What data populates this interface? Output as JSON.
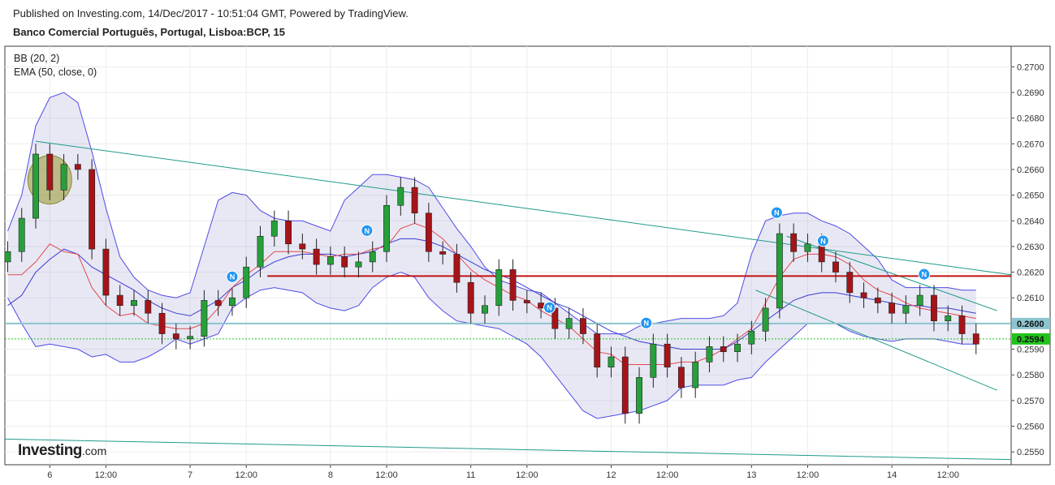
{
  "header": {
    "published": "Published on Investing.com, 14/Dec/2017 - 10:51:04 GMT, Powered by TradingView.",
    "instrument": "Banco Comercial Português, Portugal, Lisboa:BCP, 15"
  },
  "legend": {
    "bb": "BB (20, 2)",
    "ema": "EMA (50, close, 0)"
  },
  "logo": {
    "main": "Investing",
    "suffix": ".com"
  },
  "chart_data": {
    "type": "candlestick",
    "ylim": [
      0.2545,
      0.2708
    ],
    "yticks": [
      "0.2550",
      "0.2560",
      "0.2570",
      "0.2580",
      "0.2590",
      "0.2600",
      "0.2610",
      "0.2620",
      "0.2630",
      "0.2640",
      "0.2650",
      "0.2660",
      "0.2670",
      "0.2680",
      "0.2690",
      "0.2700"
    ],
    "xticks": [
      {
        "label": "6",
        "t": 3
      },
      {
        "label": "12:00",
        "t": 7
      },
      {
        "label": "7",
        "t": 13
      },
      {
        "label": "12:00",
        "t": 17
      },
      {
        "label": "8",
        "t": 23
      },
      {
        "label": "12:00",
        "t": 27
      },
      {
        "label": "11",
        "t": 33
      },
      {
        "label": "12:00",
        "t": 37
      },
      {
        "label": "12",
        "t": 43
      },
      {
        "label": "12:00",
        "t": 47
      },
      {
        "label": "13",
        "t": 53
      },
      {
        "label": "12:00",
        "t": 57
      },
      {
        "label": "14",
        "t": 63
      },
      {
        "label": "12:00",
        "t": 67
      }
    ],
    "x_range": [
      -0.2,
      71.5
    ],
    "price_markers": [
      {
        "value": 0.26,
        "label": "0.2600",
        "color": "#8cc4cf"
      },
      {
        "value": 0.2594,
        "label": "0.2594",
        "color": "#22c41b"
      }
    ],
    "close": [
      0.2628,
      0.2641,
      0.2666,
      0.2652,
      0.2662,
      0.266,
      0.2629,
      0.2611,
      0.2607,
      0.2609,
      0.2604,
      0.2596,
      0.2594,
      0.2595,
      0.2609,
      0.2607,
      0.261,
      0.2622,
      0.2634,
      0.264,
      0.2631,
      0.2629,
      0.2623,
      0.2626,
      0.2622,
      0.2624,
      0.2628,
      0.2646,
      0.2653,
      0.2643,
      0.2628,
      0.2627,
      0.2616,
      0.2604,
      0.2607,
      0.2621,
      0.2609,
      0.2608,
      0.2606,
      0.2598,
      0.2602,
      0.2596,
      0.2583,
      0.2587,
      0.2565,
      0.2579,
      0.2592,
      0.2583,
      0.2575,
      0.2585,
      0.2591,
      0.2589,
      0.2592,
      0.2597,
      0.2606,
      0.2635,
      0.2628,
      0.2631,
      0.2624,
      0.262,
      0.2612,
      0.261,
      0.2608,
      0.2604,
      0.2607,
      0.2611,
      0.2601,
      0.2603,
      0.2596,
      0.2592
    ],
    "ema50": [
      0.2619,
      0.2619,
      0.2624,
      0.2631,
      0.2628,
      0.2627,
      0.2614,
      0.2607,
      0.2603,
      0.2604,
      0.26,
      0.2599,
      0.2598,
      0.2598,
      0.26,
      0.2606,
      0.2614,
      0.2619,
      0.2623,
      0.2628,
      0.2628,
      0.2628,
      0.2627,
      0.2626,
      0.2627,
      0.2627,
      0.2629,
      0.263,
      0.2637,
      0.2639,
      0.2637,
      0.2633,
      0.2627,
      0.2621,
      0.2617,
      0.2614,
      0.2611,
      0.2609,
      0.2605,
      0.2602,
      0.2599,
      0.2594,
      0.2589,
      0.2588,
      0.2584,
      0.2584,
      0.2584,
      0.2584,
      0.2585,
      0.2585,
      0.2587,
      0.259,
      0.2594,
      0.2598,
      0.2608,
      0.2618,
      0.2625,
      0.2627,
      0.2627,
      0.2626,
      0.2623,
      0.2617,
      0.2613,
      0.2611,
      0.2608,
      0.2606,
      0.2605,
      0.2604,
      0.2603,
      0.2602
    ],
    "bb_mid": [
      0.2607,
      0.2611,
      0.262,
      0.2625,
      0.2629,
      0.2627,
      0.2622,
      0.2619,
      0.2616,
      0.2613,
      0.2609,
      0.2606,
      0.2604,
      0.2603,
      0.2606,
      0.2609,
      0.2614,
      0.2617,
      0.2621,
      0.2624,
      0.2626,
      0.2627,
      0.2627,
      0.2627,
      0.2626,
      0.2627,
      0.2628,
      0.2631,
      0.2633,
      0.2633,
      0.2632,
      0.263,
      0.2627,
      0.2624,
      0.2621,
      0.2619,
      0.2617,
      0.2614,
      0.2611,
      0.2608,
      0.2606,
      0.2603,
      0.26,
      0.2597,
      0.2595,
      0.2593,
      0.2592,
      0.2591,
      0.259,
      0.259,
      0.259,
      0.259,
      0.2593,
      0.2597,
      0.2601,
      0.2605,
      0.2609,
      0.2611,
      0.2612,
      0.2612,
      0.2611,
      0.261,
      0.2609,
      0.2608,
      0.2607,
      0.2607,
      0.2606,
      0.2606,
      0.2605,
      0.2604
    ],
    "bb_upper": [
      0.2636,
      0.265,
      0.2677,
      0.2688,
      0.269,
      0.2686,
      0.2667,
      0.2645,
      0.2626,
      0.2618,
      0.2613,
      0.2611,
      0.261,
      0.2612,
      0.263,
      0.2648,
      0.2651,
      0.265,
      0.2644,
      0.2641,
      0.264,
      0.264,
      0.2638,
      0.2636,
      0.2648,
      0.2653,
      0.2658,
      0.2658,
      0.2657,
      0.2656,
      0.2653,
      0.2645,
      0.2637,
      0.263,
      0.2622,
      0.2617,
      0.2615,
      0.2613,
      0.2612,
      0.2608,
      0.2604,
      0.26,
      0.2596,
      0.2596,
      0.2596,
      0.2599,
      0.26,
      0.2601,
      0.2602,
      0.2602,
      0.2602,
      0.2603,
      0.2608,
      0.2627,
      0.264,
      0.2642,
      0.2643,
      0.2643,
      0.264,
      0.2638,
      0.2635,
      0.263,
      0.2625,
      0.2617,
      0.2614,
      0.2614,
      0.2614,
      0.2614,
      0.2613,
      0.2613
    ],
    "bb_lower": [
      0.261,
      0.26,
      0.2591,
      0.2592,
      0.2591,
      0.259,
      0.2587,
      0.2588,
      0.2585,
      0.2585,
      0.2587,
      0.259,
      0.2594,
      0.2592,
      0.2594,
      0.2596,
      0.2606,
      0.261,
      0.2613,
      0.2614,
      0.2613,
      0.2612,
      0.2608,
      0.2606,
      0.2605,
      0.2607,
      0.2614,
      0.2618,
      0.262,
      0.2618,
      0.261,
      0.2605,
      0.2601,
      0.26,
      0.2599,
      0.2598,
      0.2595,
      0.2592,
      0.2587,
      0.258,
      0.2573,
      0.2566,
      0.2563,
      0.2564,
      0.2565,
      0.2566,
      0.2568,
      0.257,
      0.2575,
      0.2576,
      0.2576,
      0.2576,
      0.2578,
      0.2579,
      0.2585,
      0.259,
      0.2595,
      0.26,
      0.26,
      0.26,
      0.2597,
      0.2595,
      0.2594,
      0.2593,
      0.2594,
      0.2594,
      0.2594,
      0.2593,
      0.2592,
      0.2592
    ],
    "horizontal_lines": [
      {
        "from_t": 18.5,
        "to_t": 71.5,
        "value": 0.26185,
        "color": "#c21313"
      }
    ],
    "trend_lines": [
      {
        "t1": 2.0,
        "v1": 0.2671,
        "t2": 71.5,
        "v2": 0.2619
      },
      {
        "t1": -0.2,
        "v1": 0.2555,
        "t2": 71.5,
        "v2": 0.2547
      },
      {
        "t1": 55.5,
        "v1": 0.2634,
        "t2": 70.5,
        "v2": 0.2605
      },
      {
        "t1": 53.3,
        "v1": 0.2613,
        "t2": 70.5,
        "v2": 0.2574
      }
    ],
    "news_markers": [
      16.0,
      25.6,
      38.6,
      45.5,
      54.8,
      58.1,
      65.3
    ],
    "highlight": {
      "t": 3.0,
      "value": 0.2656
    }
  }
}
